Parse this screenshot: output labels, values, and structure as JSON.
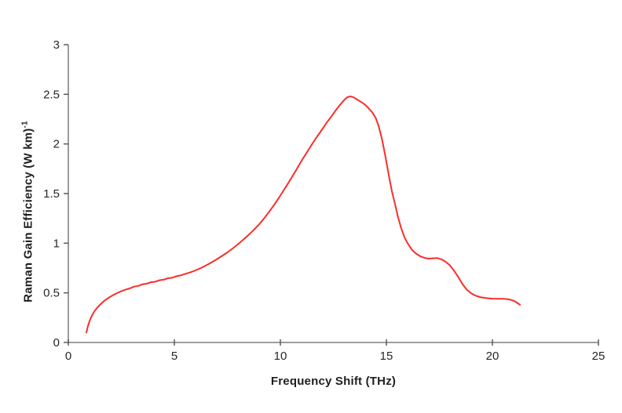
{
  "chart_data": {
    "type": "line",
    "title": "",
    "xlabel": "Frequency Shift (THz)",
    "ylabel_main": "Raman Gain Efficiency (W km)",
    "ylabel_superscript": "-1",
    "xlim": [
      0,
      25
    ],
    "ylim": [
      0,
      3
    ],
    "xticks": [
      0,
      5,
      10,
      15,
      20,
      25
    ],
    "xtick_labels": [
      "0",
      "5",
      "10",
      "15",
      "20",
      "25"
    ],
    "yticks": [
      0,
      0.5,
      1,
      1.5,
      2,
      2.5,
      3
    ],
    "ytick_labels": [
      "0",
      "0.5",
      "1",
      "1.5",
      "2",
      "2.5",
      "3"
    ],
    "grid": false,
    "legend": "none",
    "colors": {
      "series": "#fa2d28",
      "axis_line": "#909090",
      "tick_mark": "#5a5a5a",
      "text": "#262626"
    },
    "series": [
      {
        "name": "Raman gain efficiency spectrum",
        "color": "#fa2d28",
        "points": [
          [
            0.85,
            0.1
          ],
          [
            0.92,
            0.16
          ],
          [
            1.0,
            0.215
          ],
          [
            1.1,
            0.265
          ],
          [
            1.22,
            0.31
          ],
          [
            1.36,
            0.35
          ],
          [
            1.52,
            0.385
          ],
          [
            1.7,
            0.42
          ],
          [
            1.9,
            0.45
          ],
          [
            2.1,
            0.476
          ],
          [
            2.3,
            0.497
          ],
          [
            2.5,
            0.516
          ],
          [
            2.7,
            0.532
          ],
          [
            2.9,
            0.545
          ],
          [
            3.1,
            0.563
          ],
          [
            3.3,
            0.57
          ],
          [
            3.5,
            0.586
          ],
          [
            3.7,
            0.592
          ],
          [
            3.9,
            0.607
          ],
          [
            4.1,
            0.612
          ],
          [
            4.3,
            0.627
          ],
          [
            4.5,
            0.632
          ],
          [
            4.7,
            0.647
          ],
          [
            4.9,
            0.652
          ],
          [
            5.1,
            0.667
          ],
          [
            5.3,
            0.676
          ],
          [
            5.5,
            0.69
          ],
          [
            5.75,
            0.706
          ],
          [
            6.0,
            0.726
          ],
          [
            6.25,
            0.75
          ],
          [
            6.5,
            0.777
          ],
          [
            6.75,
            0.806
          ],
          [
            7.0,
            0.838
          ],
          [
            7.25,
            0.872
          ],
          [
            7.5,
            0.908
          ],
          [
            7.75,
            0.947
          ],
          [
            8.0,
            0.99
          ],
          [
            8.25,
            1.035
          ],
          [
            8.5,
            1.083
          ],
          [
            8.75,
            1.135
          ],
          [
            9.0,
            1.19
          ],
          [
            9.25,
            1.255
          ],
          [
            9.5,
            1.325
          ],
          [
            9.75,
            1.4
          ],
          [
            10.0,
            1.48
          ],
          [
            10.25,
            1.565
          ],
          [
            10.5,
            1.65
          ],
          [
            10.75,
            1.74
          ],
          [
            11.0,
            1.83
          ],
          [
            11.25,
            1.915
          ],
          [
            11.5,
            2.0
          ],
          [
            11.75,
            2.08
          ],
          [
            12.0,
            2.155
          ],
          [
            12.2,
            2.22
          ],
          [
            12.4,
            2.275
          ],
          [
            12.6,
            2.335
          ],
          [
            12.8,
            2.39
          ],
          [
            13.0,
            2.44
          ],
          [
            13.15,
            2.47
          ],
          [
            13.3,
            2.48
          ],
          [
            13.45,
            2.47
          ],
          [
            13.6,
            2.45
          ],
          [
            13.75,
            2.43
          ],
          [
            13.9,
            2.41
          ],
          [
            14.05,
            2.385
          ],
          [
            14.2,
            2.35
          ],
          [
            14.35,
            2.315
          ],
          [
            14.5,
            2.26
          ],
          [
            14.65,
            2.17
          ],
          [
            14.8,
            2.04
          ],
          [
            14.95,
            1.88
          ],
          [
            15.1,
            1.7
          ],
          [
            15.25,
            1.53
          ],
          [
            15.4,
            1.4
          ],
          [
            15.55,
            1.26
          ],
          [
            15.7,
            1.15
          ],
          [
            15.85,
            1.06
          ],
          [
            16.0,
            1.0
          ],
          [
            16.2,
            0.935
          ],
          [
            16.4,
            0.895
          ],
          [
            16.6,
            0.868
          ],
          [
            16.8,
            0.852
          ],
          [
            17.0,
            0.845
          ],
          [
            17.2,
            0.848
          ],
          [
            17.4,
            0.85
          ],
          [
            17.6,
            0.838
          ],
          [
            17.8,
            0.812
          ],
          [
            18.0,
            0.775
          ],
          [
            18.2,
            0.72
          ],
          [
            18.4,
            0.655
          ],
          [
            18.6,
            0.585
          ],
          [
            18.8,
            0.53
          ],
          [
            19.0,
            0.495
          ],
          [
            19.2,
            0.472
          ],
          [
            19.4,
            0.458
          ],
          [
            19.6,
            0.45
          ],
          [
            19.8,
            0.445
          ],
          [
            20.0,
            0.441
          ],
          [
            20.25,
            0.44
          ],
          [
            20.5,
            0.44
          ],
          [
            20.7,
            0.437
          ],
          [
            20.9,
            0.428
          ],
          [
            21.05,
            0.415
          ],
          [
            21.2,
            0.395
          ],
          [
            21.3,
            0.38
          ]
        ]
      }
    ]
  }
}
